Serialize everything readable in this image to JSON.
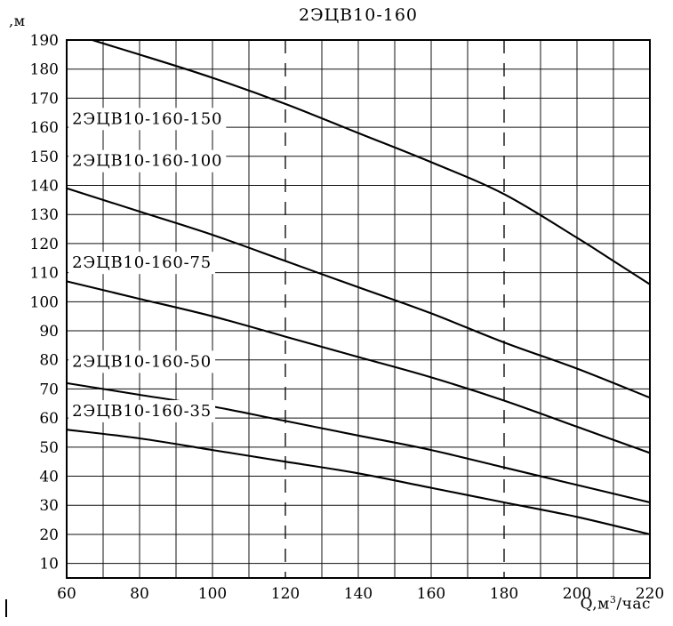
{
  "page": {
    "title": "2ЭЦВ10-160",
    "y_axis_unit": ",м",
    "x_axis_label_prefix": "Q,м",
    "x_axis_label_sup": "3",
    "x_axis_label_suffix": "/час"
  },
  "chart_data": {
    "type": "line",
    "title": "2ЭЦВ10-160",
    "xlabel": "Q,м³/час",
    "ylabel": ",м",
    "xlim": [
      60,
      220
    ],
    "ylim": [
      5,
      190
    ],
    "x_tick_labels": [
      60,
      80,
      100,
      120,
      140,
      160,
      180,
      200,
      220
    ],
    "y_tick_labels": [
      10,
      20,
      30,
      40,
      50,
      60,
      70,
      80,
      90,
      100,
      110,
      120,
      130,
      140,
      150,
      160,
      170,
      180,
      190
    ],
    "grid": {
      "on": true,
      "step_x": 10,
      "step_y": 10,
      "dashed_vlines": [
        120,
        180
      ]
    },
    "legend_position": "inline-labels",
    "line_color": "#000000",
    "series": [
      {
        "name": "2ЭЦВ10-160-150",
        "label": {
          "x": 61.5,
          "y": 163
        },
        "points": [
          [
            67,
            190
          ],
          [
            80,
            185
          ],
          [
            100,
            177
          ],
          [
            120,
            168
          ],
          [
            140,
            158
          ],
          [
            160,
            148
          ],
          [
            180,
            137
          ],
          [
            200,
            122
          ],
          [
            210,
            114
          ],
          [
            220,
            106
          ]
        ]
      },
      {
        "name": "2ЭЦВ10-160-100",
        "label": {
          "x": 61.5,
          "y": 148.5
        },
        "points": [
          [
            60,
            139
          ],
          [
            80,
            131
          ],
          [
            100,
            123
          ],
          [
            120,
            114
          ],
          [
            140,
            105
          ],
          [
            160,
            96
          ],
          [
            180,
            86
          ],
          [
            200,
            77
          ],
          [
            220,
            67
          ]
        ]
      },
      {
        "name": "2ЭЦВ10-160-75",
        "label": {
          "x": 61.5,
          "y": 113.5
        },
        "points": [
          [
            60,
            107
          ],
          [
            80,
            101
          ],
          [
            100,
            95
          ],
          [
            120,
            88
          ],
          [
            140,
            81
          ],
          [
            160,
            74
          ],
          [
            180,
            66
          ],
          [
            200,
            57
          ],
          [
            220,
            48
          ]
        ]
      },
      {
        "name": "2ЭЦВ10-160-50",
        "label": {
          "x": 61.5,
          "y": 79.5
        },
        "points": [
          [
            60,
            72
          ],
          [
            80,
            68
          ],
          [
            100,
            64
          ],
          [
            120,
            59
          ],
          [
            140,
            54
          ],
          [
            160,
            49
          ],
          [
            180,
            43
          ],
          [
            200,
            37
          ],
          [
            220,
            31
          ]
        ]
      },
      {
        "name": "2ЭЦВ10-160-35",
        "label": {
          "x": 61.5,
          "y": 62.5
        },
        "points": [
          [
            60,
            56
          ],
          [
            80,
            53
          ],
          [
            100,
            49
          ],
          [
            120,
            45
          ],
          [
            140,
            41
          ],
          [
            160,
            36
          ],
          [
            180,
            31
          ],
          [
            200,
            26
          ],
          [
            220,
            20
          ]
        ]
      }
    ]
  }
}
